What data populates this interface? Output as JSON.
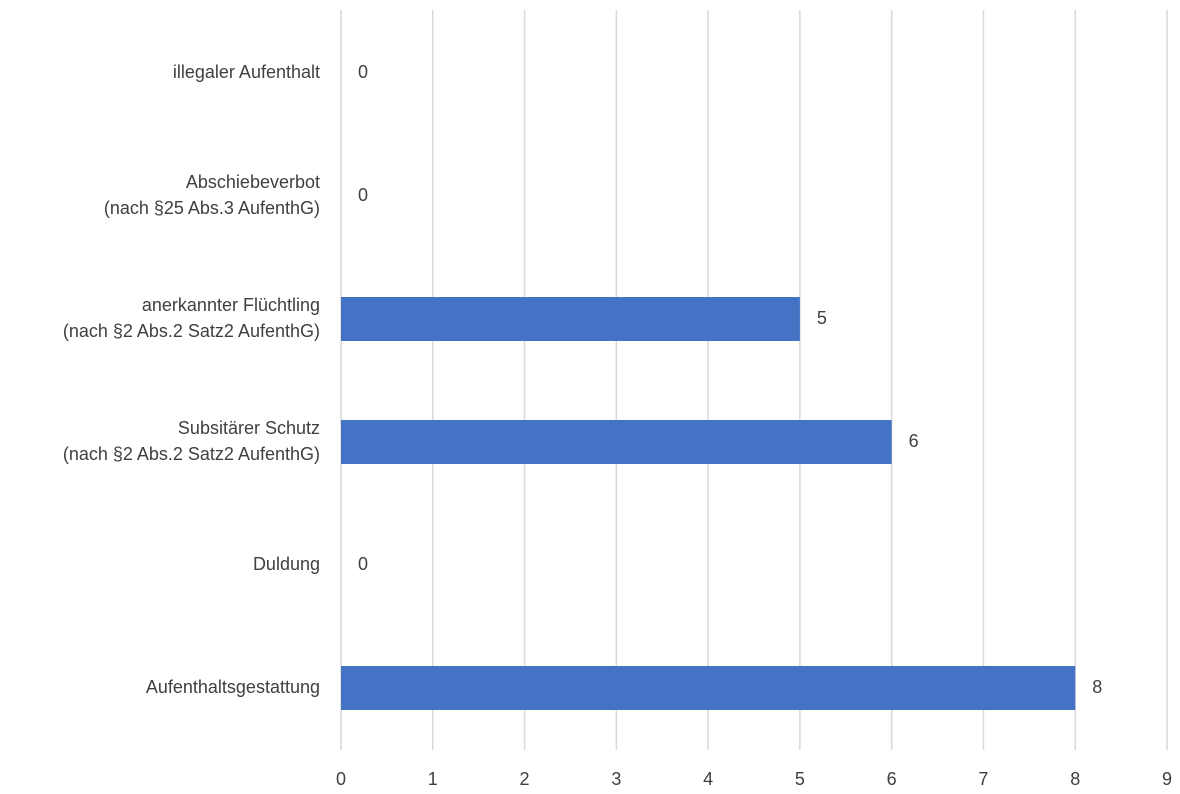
{
  "chart_data": {
    "type": "hbar",
    "categories": [
      "illegaler Aufenthalt",
      "Abschiebeverbot\n(nach §25 Abs.3 AufenthG)",
      "anerkannter Flüchtling\n(nach §2 Abs.2 Satz2 AufenthG)",
      "Subsitärer Schutz\n(nach §2 Abs.2 Satz2 AufenthG)",
      "Duldung",
      "Aufenthaltsgestattung"
    ],
    "values": [
      0,
      0,
      5,
      6,
      0,
      8
    ],
    "color": "#4472c4",
    "xlim": [
      0,
      9
    ],
    "xticks": [
      0,
      1,
      2,
      3,
      4,
      5,
      6,
      7,
      8,
      9
    ],
    "grid": true
  }
}
